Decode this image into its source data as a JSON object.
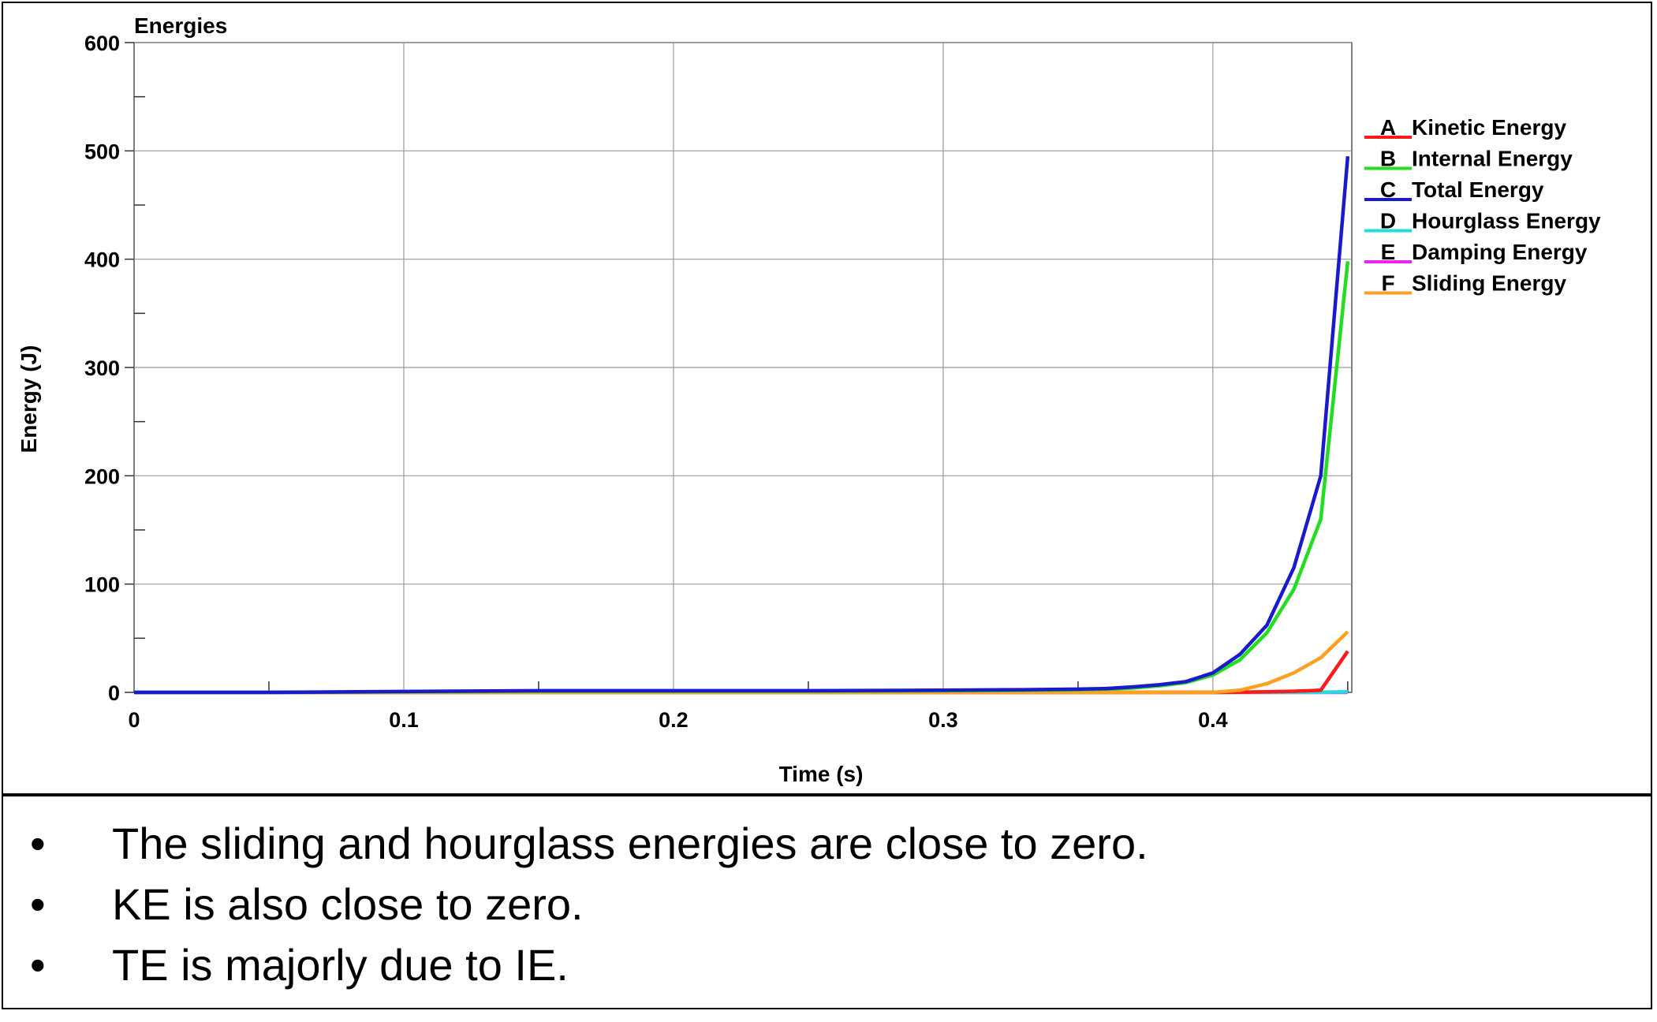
{
  "chart_data": {
    "type": "line",
    "title": "Energies",
    "xlabel": "Time (s)",
    "ylabel": "Energy (J)",
    "xlim": [
      0,
      0.45
    ],
    "ylim": [
      0,
      600
    ],
    "xticks": [
      0,
      0.1,
      0.2,
      0.3,
      0.4
    ],
    "xtick_labels": [
      "0",
      "0.1",
      "0.2",
      "0.3",
      "0.4"
    ],
    "yticks": [
      0,
      100,
      200,
      300,
      400,
      500,
      600
    ],
    "ytick_labels": [
      "0",
      "100",
      "200",
      "300",
      "400",
      "500",
      "600"
    ],
    "grid": true,
    "legend_position": "right",
    "x": [
      0,
      0.05,
      0.1,
      0.15,
      0.2,
      0.25,
      0.3,
      0.33,
      0.35,
      0.36,
      0.37,
      0.38,
      0.39,
      0.4,
      0.41,
      0.42,
      0.43,
      0.44,
      0.45
    ],
    "series": [
      {
        "letter": "A",
        "name": "Kinetic Energy",
        "color": "#ff1a1a",
        "values": [
          0,
          0,
          0,
          0,
          0,
          0,
          0,
          0,
          0,
          0,
          0,
          0,
          0,
          0,
          0.2,
          0.5,
          1,
          2,
          38
        ]
      },
      {
        "letter": "B",
        "name": "Internal Energy",
        "color": "#22dd22",
        "values": [
          0,
          0,
          0.5,
          1,
          1,
          1,
          1.5,
          2,
          2.5,
          3,
          4,
          6,
          9,
          16,
          30,
          55,
          95,
          160,
          398
        ]
      },
      {
        "letter": "C",
        "name": "Total Energy",
        "color": "#1a1acc",
        "values": [
          0,
          0,
          0.8,
          1.5,
          1.5,
          1.5,
          2,
          2.5,
          3,
          3.5,
          5,
          7,
          10,
          18,
          35,
          62,
          115,
          200,
          495
        ]
      },
      {
        "letter": "D",
        "name": "Hourglass Energy",
        "color": "#22dddd",
        "values": [
          0,
          0,
          0,
          0,
          0,
          0,
          0,
          0,
          0,
          0,
          0,
          0,
          0,
          0,
          0,
          0,
          0,
          0.2,
          0.5
        ]
      },
      {
        "letter": "E",
        "name": "Damping Energy",
        "color": "#ee22ee",
        "values": [
          0,
          0,
          0,
          0,
          0,
          0,
          0,
          0,
          0,
          0,
          0,
          0,
          0,
          0,
          0,
          0,
          0,
          0,
          0
        ]
      },
      {
        "letter": "F",
        "name": "Sliding Energy",
        "color": "#ffa020",
        "values": [
          0,
          0,
          0,
          0,
          0,
          0,
          0,
          0,
          0,
          0,
          0,
          0,
          0,
          0,
          2,
          8,
          18,
          32,
          56
        ]
      }
    ]
  },
  "notes": {
    "bullet": "•",
    "items": [
      "The sliding and hourglass energies are close to zero.",
      "KE is also close to zero.",
      "TE is majorly due to IE."
    ]
  }
}
